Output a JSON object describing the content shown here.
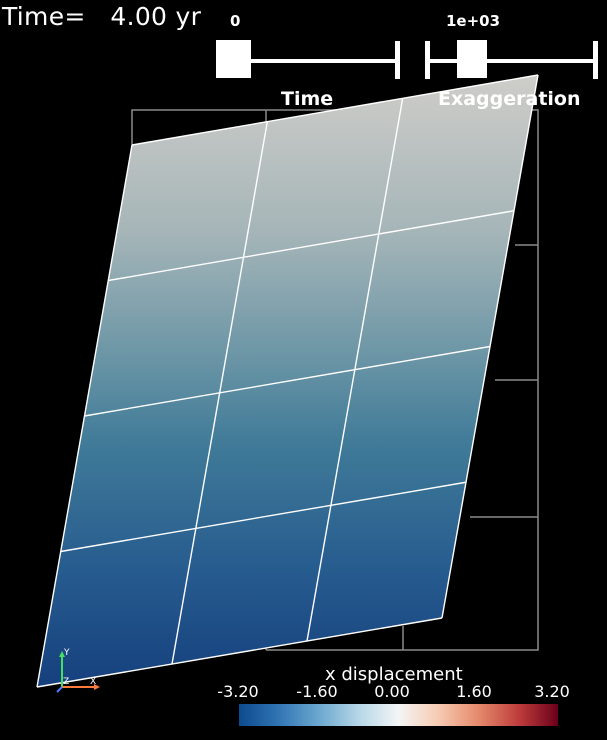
{
  "annotation": {
    "time_text": "Time=   4.00 yr"
  },
  "time_slider": {
    "label": "Time",
    "value_text": "0",
    "position_fraction": 0.1
  },
  "exaggeration_slider": {
    "label": "Exaggeration",
    "value_text": "1e+03",
    "position_fraction": 0.3
  },
  "color_bar": {
    "title": "x displacement",
    "ticks": [
      "-3.20",
      "-1.60",
      "0.00",
      "1.60",
      "3.20"
    ],
    "range": [
      -3.2,
      3.2
    ],
    "colors": {
      "low": "#0d4a8e",
      "mid": "#f3f5f6",
      "high": "#6b0019"
    }
  },
  "orientation_axes": {
    "x_label": "X",
    "y_label": "Y",
    "z_label": "Z",
    "x_color": "#ff7a3d",
    "y_color": "#44dd66",
    "z_color": "#4d7dff"
  },
  "mesh": {
    "rows": 4,
    "columns": 3,
    "top_color": "#c9c9c6",
    "bottom_color": "#1a4a86",
    "grid_line_color": "#ffffff"
  }
}
